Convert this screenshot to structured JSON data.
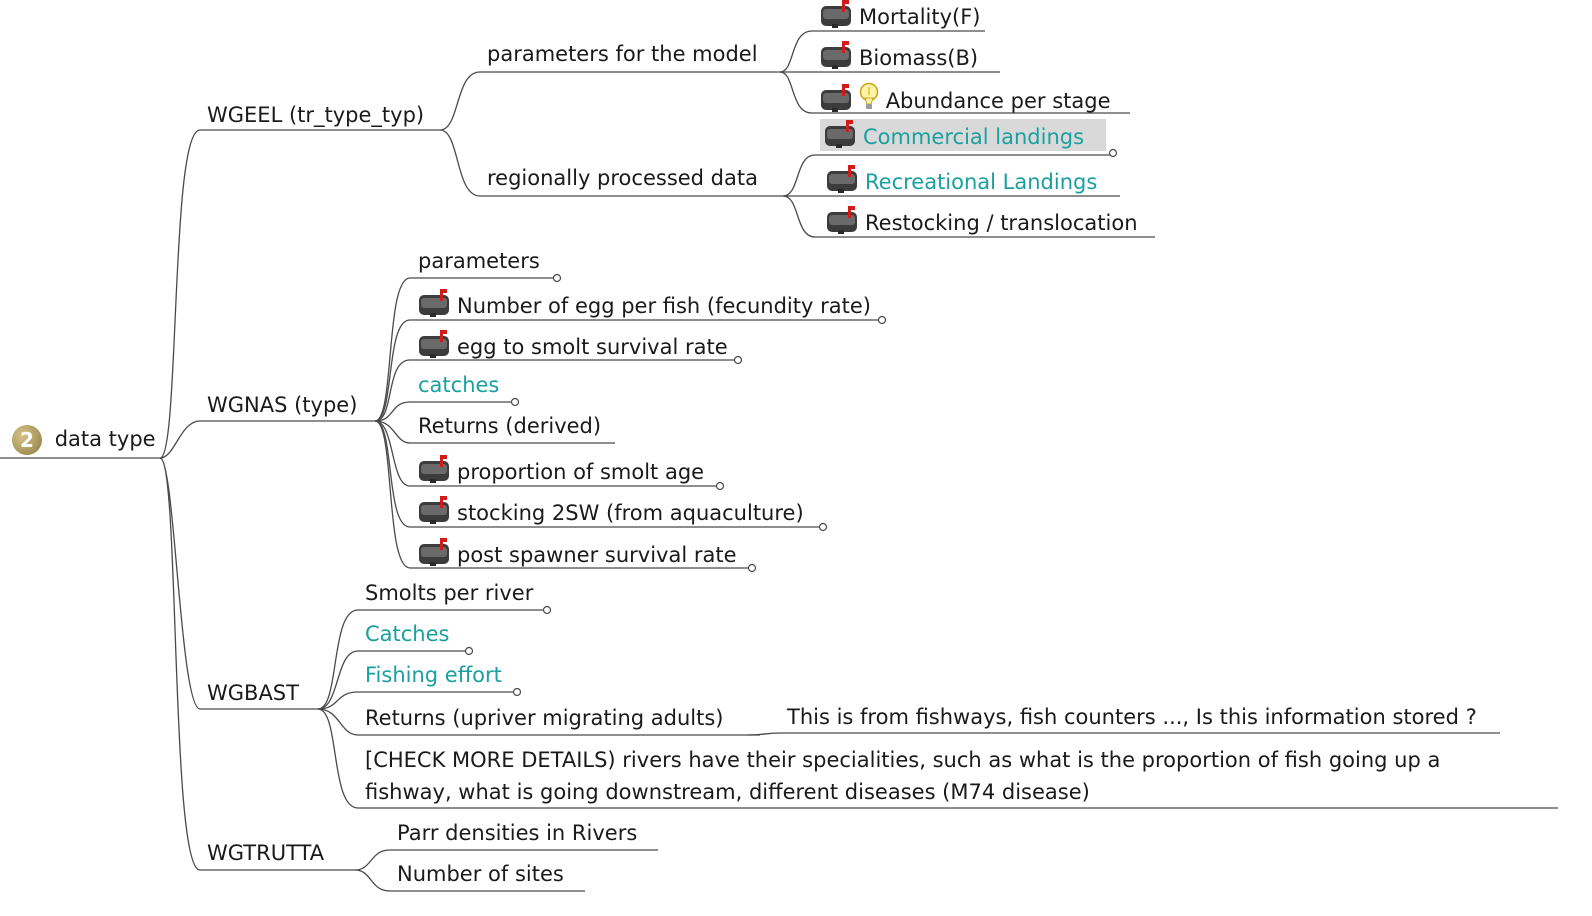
{
  "root": {
    "label": "data type",
    "priority": "2"
  },
  "wgeel": {
    "label": "WGEEL (tr_type_typ)",
    "params_model": {
      "label": "parameters for the model",
      "items": [
        "Mortality(F)",
        "Biomass(B)",
        "Abundance per stage"
      ]
    },
    "regional": {
      "label": "regionally processed data",
      "items": [
        "Commercial landings",
        "Recreational Landings",
        "Restocking / translocation"
      ]
    }
  },
  "wgnas": {
    "label": "WGNAS (type)",
    "items": [
      "parameters",
      "Number of egg per fish (fecundity rate)",
      "egg to smolt survival rate",
      "catches",
      "Returns (derived)",
      "proportion of smolt age",
      "stocking 2SW (from aquaculture)",
      "post spawner survival rate"
    ]
  },
  "wgbast": {
    "label": "WGBAST",
    "items": [
      "Smolts per river",
      "Catches",
      "Fishing effort",
      "Returns (upriver migrating adults)",
      "[CHECK MORE DETAILS) rivers have their specialities, such as what is the proportion of fish going up a fishway, what is going downstream, different diseases (M74 disease)"
    ],
    "returns_note": "This is from fishways, fish counters ..., Is this information stored ?"
  },
  "wgtrutta": {
    "label": "WGTRUTTA",
    "items": [
      "Parr densities in Rivers",
      "Number of sites"
    ]
  },
  "colors": {
    "link": "#1aa0a0",
    "line": "#4a4a4a",
    "selected": "#d9d9d9"
  },
  "icons": {
    "mailbox": "mailbox-icon",
    "idea": "lightbulb-icon",
    "priority": "priority-2-icon"
  }
}
